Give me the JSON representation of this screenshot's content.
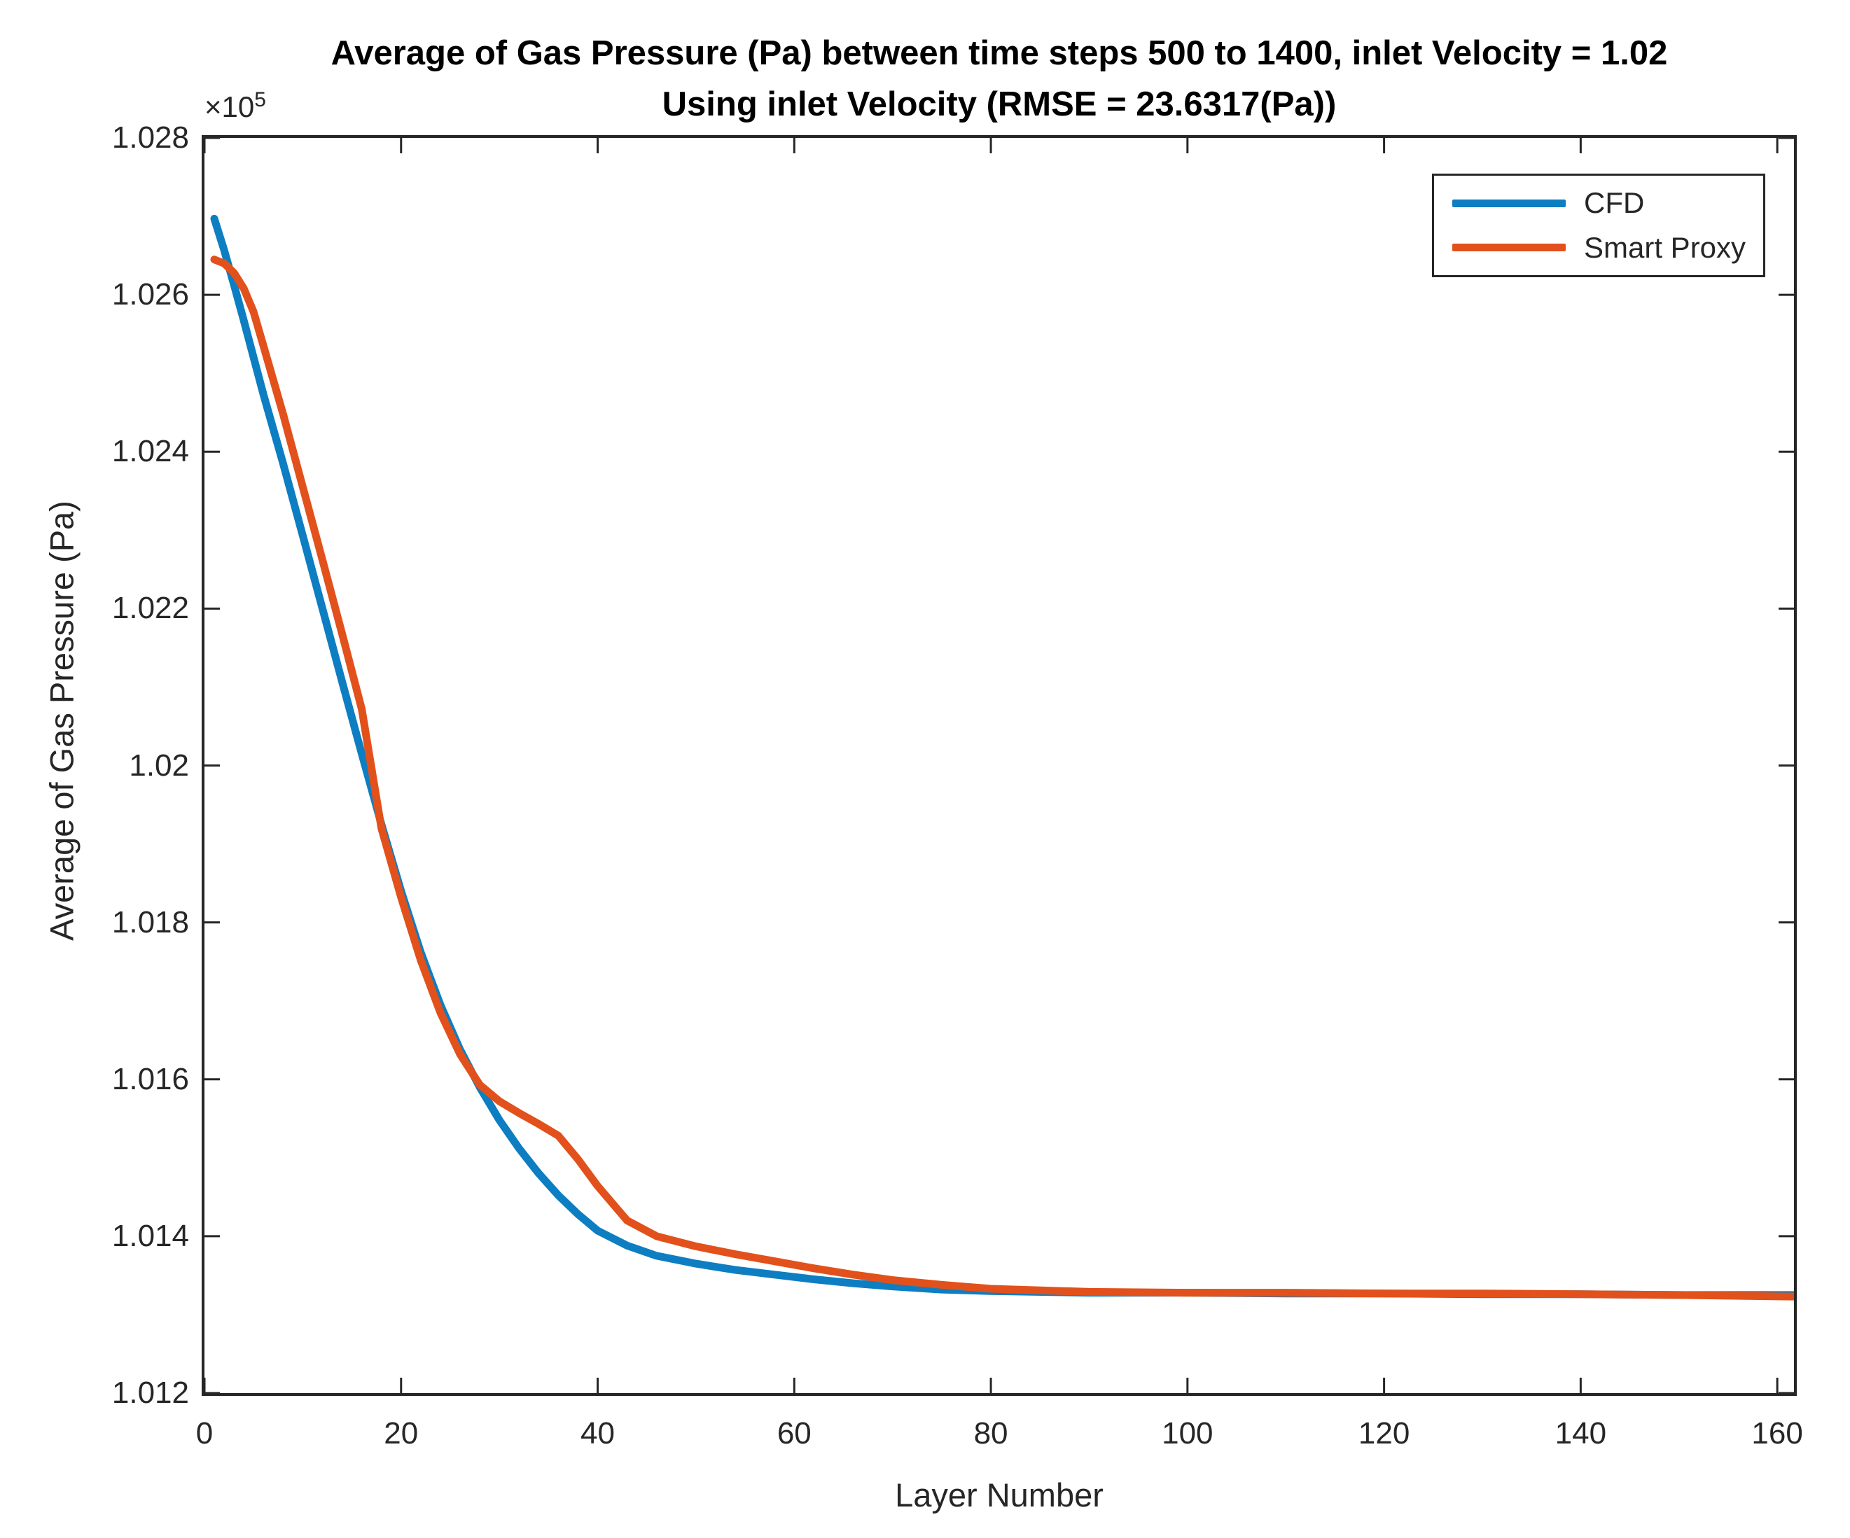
{
  "figure": {
    "title_line1": "Average of Gas Pressure (Pa) between time steps 500 to 1400, inlet Velocity = 1.02",
    "title_line2": "Using inlet Velocity (RMSE = 23.6317(Pa))",
    "offset_multiplier": "×10",
    "offset_exponent": "5",
    "xlabel": "Layer Number",
    "ylabel": "Average of Gas Pressure (Pa)"
  },
  "style": {
    "background": "#ffffff",
    "axis_color": "#262626",
    "text_color": "#262626",
    "title_color": "#000000",
    "cfd_color": "#0d7ec2",
    "smart_proxy_color": "#e2511b"
  },
  "chart_data": {
    "type": "line",
    "title": "Average of Gas Pressure (Pa) between time steps 500 to 1400, inlet Velocity = 1.02 Using inlet Velocity (RMSE = 23.6317(Pa))",
    "xlabel": "Layer Number",
    "ylabel": "Average of Gas Pressure (Pa)",
    "y_unit_note": "values in Pa × 10^5",
    "grid": false,
    "legend_position": "northeast",
    "xlim": [
      0,
      161.7
    ],
    "ylim": [
      1.012,
      1.028
    ],
    "x_ticks": [
      0,
      20,
      40,
      60,
      80,
      100,
      120,
      140,
      160
    ],
    "x_tick_labels": [
      "0",
      "20",
      "40",
      "60",
      "80",
      "100",
      "120",
      "140",
      "160"
    ],
    "y_ticks": [
      1.012,
      1.014,
      1.016,
      1.018,
      1.02,
      1.022,
      1.024,
      1.026,
      1.028
    ],
    "y_tick_labels": [
      "1.012",
      "1.014",
      "1.016",
      "1.018",
      "1.02",
      "1.022",
      "1.024",
      "1.026",
      "1.028"
    ],
    "x": [
      1,
      2,
      3,
      4,
      5,
      6,
      8,
      10,
      12,
      14,
      16,
      18,
      20,
      22,
      24,
      26,
      28,
      30,
      32,
      34,
      36,
      38,
      40,
      43,
      46,
      50,
      54,
      58,
      62,
      66,
      70,
      75,
      80,
      90,
      100,
      110,
      120,
      130,
      140,
      150,
      162
    ],
    "series": [
      {
        "name": "CFD",
        "color": "#0d7ec2",
        "values": [
          1.02697,
          1.02657,
          1.02613,
          1.02567,
          1.0252,
          1.02473,
          1.02385,
          1.02293,
          1.022,
          1.02107,
          1.02015,
          1.01925,
          1.0184,
          1.01762,
          1.01695,
          1.01638,
          1.0159,
          1.01548,
          1.01512,
          1.0148,
          1.01452,
          1.01428,
          1.01407,
          1.01388,
          1.01375,
          1.01365,
          1.01357,
          1.01351,
          1.01345,
          1.0134,
          1.01336,
          1.01332,
          1.0133,
          1.01328,
          1.01328,
          1.01327,
          1.01327,
          1.01326,
          1.01326,
          1.01325,
          1.01325
        ]
      },
      {
        "name": "Smart Proxy",
        "color": "#e2511b",
        "values": [
          1.02645,
          1.0264,
          1.02628,
          1.02608,
          1.02578,
          1.02535,
          1.02448,
          1.02355,
          1.02262,
          1.02168,
          1.02072,
          1.0192,
          1.01832,
          1.01752,
          1.01685,
          1.01632,
          1.01593,
          1.01572,
          1.01557,
          1.01543,
          1.01528,
          1.01498,
          1.01464,
          1.0142,
          1.014,
          1.01387,
          1.01377,
          1.01368,
          1.01359,
          1.01351,
          1.01344,
          1.01338,
          1.01333,
          1.01329,
          1.01328,
          1.01328,
          1.01327,
          1.01327,
          1.01326,
          1.01325,
          1.01323
        ]
      }
    ]
  }
}
